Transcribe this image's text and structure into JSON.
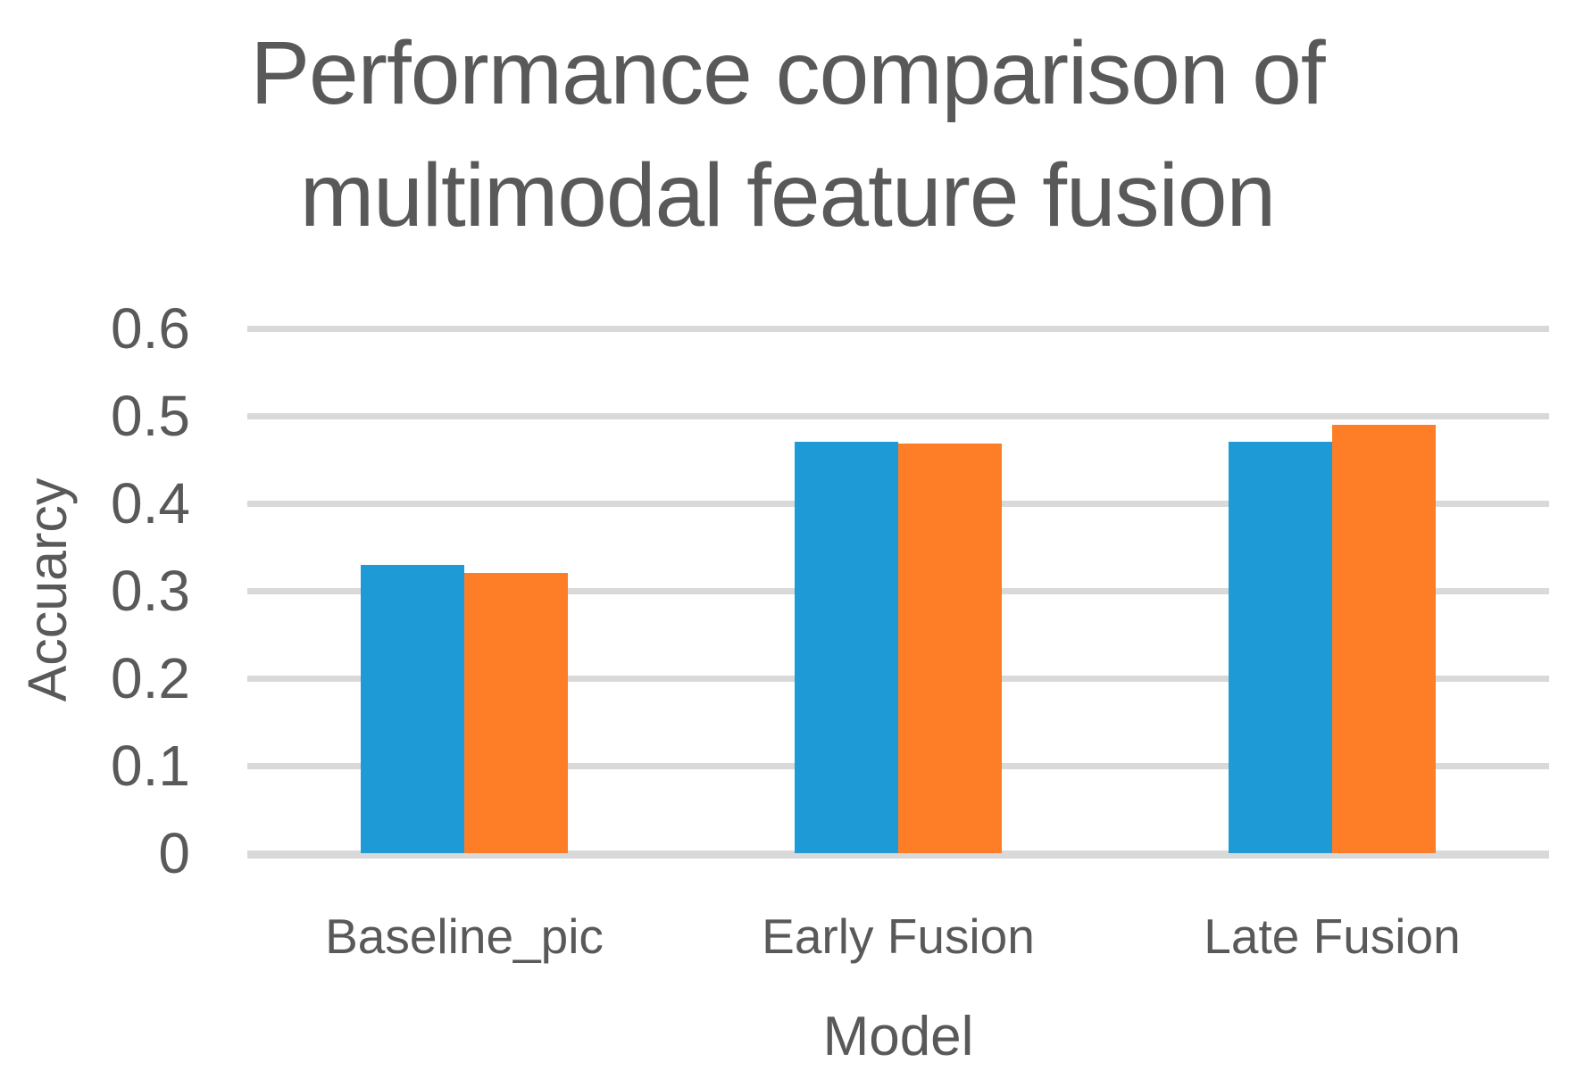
{
  "title_lines": [
    "Performance comparison of",
    "multimodal feature fusion"
  ],
  "chart_data": {
    "type": "bar",
    "title": "Performance comparison of multimodal feature fusion",
    "categories": [
      "Baseline_pic",
      "Early Fusion",
      "Late Fusion"
    ],
    "series": [
      {
        "color": "#1E9AD7",
        "values": [
          0.33,
          0.47,
          0.47
        ]
      },
      {
        "color": "#FD7E27",
        "values": [
          0.32,
          0.468,
          0.49
        ]
      }
    ],
    "xlabel": "Model",
    "ylabel": "Accuarcy",
    "ylim": [
      0,
      0.6
    ],
    "yticks": [
      "0.6",
      "0.5",
      "0.4",
      "0.3",
      "0.2",
      "0.1",
      "0"
    ],
    "ytick_values": [
      0.6,
      0.5,
      0.4,
      0.3,
      0.2,
      0.1,
      0
    ],
    "grid": true,
    "legend": "none",
    "colors": {
      "gridline": "#D9D9D9",
      "text": "#595959",
      "background": "#FFFFFF"
    }
  }
}
